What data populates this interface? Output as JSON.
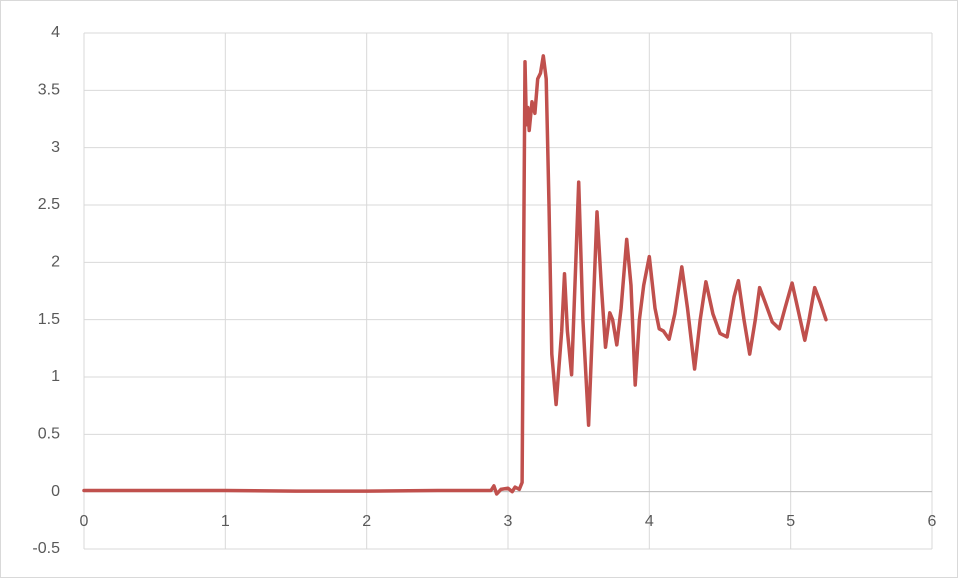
{
  "chart_data": {
    "type": "line",
    "x": [
      0,
      0.5,
      1,
      1.5,
      2,
      2.5,
      2.88,
      2.9,
      2.92,
      2.95,
      3.0,
      3.03,
      3.05,
      3.08,
      3.1,
      3.12,
      3.13,
      3.14,
      3.15,
      3.17,
      3.19,
      3.21,
      3.23,
      3.25,
      3.27,
      3.29,
      3.31,
      3.34,
      3.38,
      3.4,
      3.42,
      3.45,
      3.48,
      3.5,
      3.53,
      3.57,
      3.6,
      3.63,
      3.66,
      3.69,
      3.72,
      3.74,
      3.77,
      3.8,
      3.84,
      3.87,
      3.9,
      3.93,
      3.96,
      4.0,
      4.04,
      4.07,
      4.1,
      4.14,
      4.18,
      4.23,
      4.27,
      4.32,
      4.36,
      4.4,
      4.45,
      4.5,
      4.55,
      4.6,
      4.63,
      4.67,
      4.71,
      4.75,
      4.78,
      4.82,
      4.87,
      4.92,
      4.96,
      5.01,
      5.05,
      5.1,
      5.13,
      5.17,
      5.21,
      5.25
    ],
    "series": [
      {
        "color": "#c0504d",
        "values": [
          0.01,
          0.01,
          0.01,
          0.005,
          0.005,
          0.01,
          0.01,
          0.05,
          -0.02,
          0.02,
          0.03,
          0.0,
          0.04,
          0.02,
          0.08,
          3.75,
          3.2,
          3.35,
          3.15,
          3.4,
          3.3,
          3.6,
          3.65,
          3.8,
          3.6,
          2.5,
          1.2,
          0.76,
          1.4,
          1.9,
          1.4,
          1.02,
          2.0,
          2.7,
          1.5,
          0.58,
          1.5,
          2.44,
          1.8,
          1.26,
          1.56,
          1.5,
          1.28,
          1.6,
          2.2,
          1.8,
          0.93,
          1.5,
          1.8,
          2.05,
          1.6,
          1.42,
          1.4,
          1.33,
          1.55,
          1.96,
          1.6,
          1.07,
          1.5,
          1.83,
          1.55,
          1.38,
          1.35,
          1.7,
          1.84,
          1.5,
          1.2,
          1.5,
          1.78,
          1.65,
          1.48,
          1.42,
          1.6,
          1.82,
          1.6,
          1.32,
          1.5,
          1.78,
          1.65,
          1.5
        ]
      }
    ],
    "xlim": [
      0,
      6
    ],
    "xticks": [
      0,
      1,
      2,
      3,
      4,
      5,
      6
    ],
    "ylim": [
      -0.5,
      4
    ],
    "yticks": [
      -0.5,
      0,
      0.5,
      1,
      1.5,
      2,
      2.5,
      3,
      3.5,
      4
    ],
    "grid": true
  }
}
